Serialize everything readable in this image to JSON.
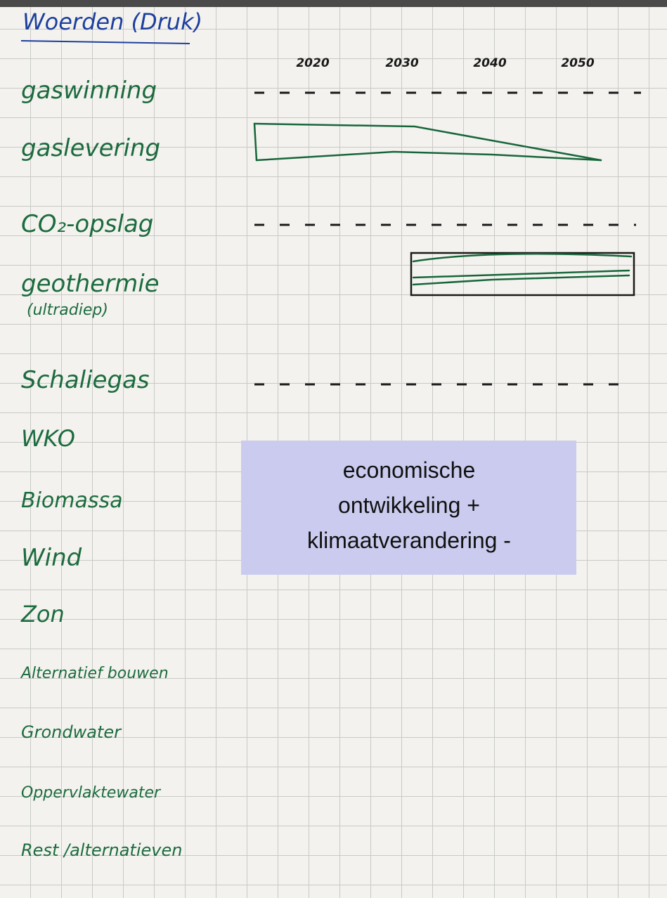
{
  "header": {
    "title": "Woerden (Druk)",
    "years": [
      "2020",
      "2030",
      "2040",
      "2050"
    ]
  },
  "rows": [
    "gaswinning",
    "gaslevering",
    "CO₂-opslag",
    "geothermie",
    "Schaliegas",
    "WKO",
    "Biomassa",
    "Wind",
    "Zon",
    "Alternatief bouwen",
    "Grondwater",
    "Oppervlaktewater",
    "Rest /alternatieven"
  ],
  "row_note": "(ultradiep)",
  "overlay": [
    "economische",
    "ontwikkeling +",
    "klimaatverandering -"
  ]
}
